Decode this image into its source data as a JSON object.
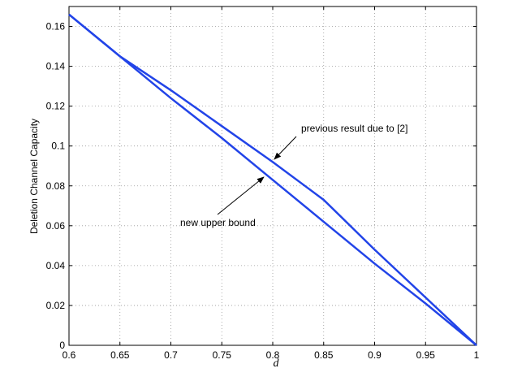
{
  "chart_data": {
    "type": "line",
    "x_label": "d",
    "y_label": "Deletion Channel Capacity",
    "x": [
      0.6,
      0.65,
      0.7,
      0.75,
      0.8,
      0.85,
      0.9,
      0.95,
      1
    ],
    "series": [
      {
        "color": "#2244e8",
        "values": [
          0.166,
          0.145,
          0.124,
          0.104,
          0.083,
          0.062,
          0.041,
          0.021,
          0
        ]
      },
      {
        "color": "#2244e8",
        "values": [
          0.166,
          0.145,
          0.128,
          0.11,
          0.092,
          0.073,
          0.048,
          0.024,
          0
        ]
      }
    ],
    "annotations": [
      "new upper bound",
      "previous result due to [2]"
    ],
    "xlim": [
      0.6,
      1
    ],
    "xticks": [
      0.6,
      0.65,
      0.7,
      0.75,
      0.8,
      0.85,
      0.9,
      0.95,
      1
    ],
    "ylim": [
      0,
      0.17
    ],
    "yticks": [
      0,
      0.02,
      0.04,
      0.06,
      0.08,
      0.1,
      0.12,
      0.14,
      0.16
    ],
    "grid": true
  }
}
